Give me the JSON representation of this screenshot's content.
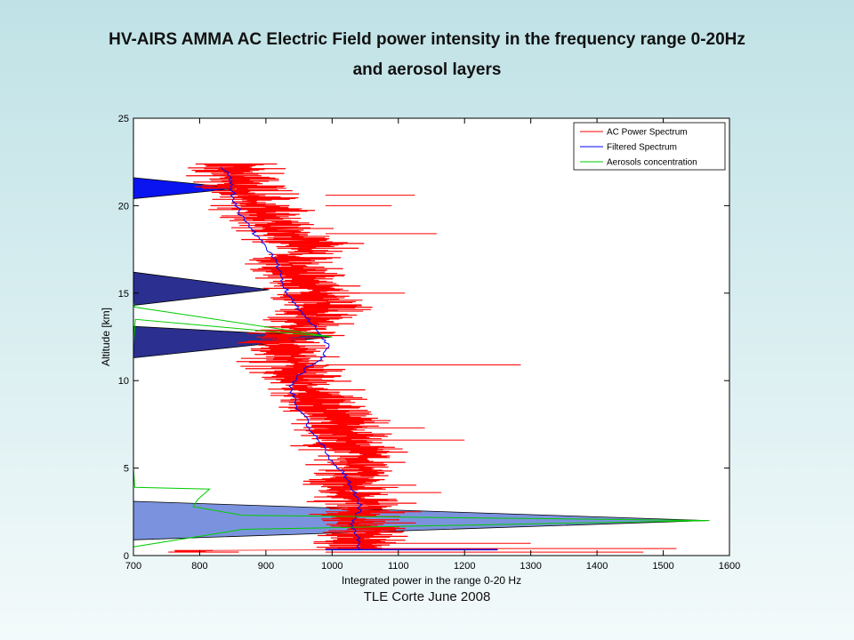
{
  "page": {
    "title_line_1": "HV-AIRS AMMA AC Electric Field power intensity in the frequency range 0-20Hz",
    "title_line_2": "and aerosol layers",
    "footer": "TLE Corte June 2008"
  },
  "chart_data": {
    "type": "line",
    "title": "",
    "xlabel": "Integrated power in the range 0-20 Hz",
    "ylabel": "Altitude [km]",
    "xlim": [
      700,
      1600
    ],
    "ylim": [
      0,
      25
    ],
    "xticks": [
      "700",
      "800",
      "900",
      "1000",
      "1100",
      "1200",
      "1300",
      "1400",
      "1500",
      "1600"
    ],
    "yticks": [
      "0",
      "5",
      "10",
      "15",
      "20",
      "25"
    ],
    "grid": false,
    "legend_position": "top-right",
    "colors": {
      "ac_power": "#ff0000",
      "filtered": "#0000ff",
      "aerosols": "#00cc00",
      "layer_dark": "#2b2f8f",
      "layer_bright": "#0a14f0",
      "layer_light": "#7b93de"
    },
    "series": [
      {
        "name": "AC Power Spectrum",
        "x": [
          1050,
          1030,
          1060,
          1045,
          1035,
          1055,
          1040,
          1020,
          1035,
          1050,
          1030,
          1045,
          1020,
          1035,
          1010,
          1020,
          990,
          985,
          970,
          965,
          950,
          945,
          930,
          925,
          935,
          945,
          965,
          980,
          990,
          985,
          970,
          960,
          945,
          935,
          955,
          965,
          940,
          920,
          905,
          900,
          885,
          870,
          860,
          850,
          845,
          840,
          830,
          815,
          810,
          805
        ],
        "y": [
          0.3,
          0.8,
          1.3,
          1.8,
          2.3,
          2.8,
          3.3,
          3.8,
          4.3,
          4.8,
          5.3,
          5.8,
          6.3,
          6.8,
          7.3,
          7.8,
          8.3,
          8.8,
          9.3,
          9.8,
          10.3,
          10.8,
          11.3,
          11.8,
          12.3,
          12.8,
          13.3,
          13.8,
          14.3,
          14.8,
          15.3,
          15.8,
          16.3,
          16.8,
          17.3,
          17.8,
          18.3,
          18.8,
          19.3,
          19.8,
          20.3,
          20.8,
          21.3,
          21.8,
          22.2,
          22.4,
          22.3,
          22.1,
          21.8,
          21.5
        ],
        "spread": 55
      },
      {
        "name": "Filtered Spectrum",
        "x": [
          1040,
          1042,
          1035,
          1030,
          1038,
          1042,
          1038,
          1030,
          1025,
          1015,
          1000,
          995,
          985,
          975,
          965,
          960,
          950,
          945,
          940,
          938,
          950,
          965,
          985,
          995,
          990,
          980,
          970,
          958,
          945,
          935,
          930,
          925,
          920,
          915,
          905,
          895,
          885,
          875,
          865,
          858,
          852,
          850,
          848,
          845,
          840,
          832,
          825
        ],
        "y": [
          0.3,
          0.8,
          1.3,
          1.8,
          2.3,
          2.8,
          3.3,
          3.8,
          4.3,
          4.8,
          5.3,
          5.8,
          6.3,
          6.8,
          7.3,
          7.8,
          8.3,
          8.8,
          9.3,
          9.8,
          10.3,
          10.8,
          11.3,
          11.8,
          12.3,
          12.8,
          13.3,
          13.8,
          14.3,
          14.8,
          15.3,
          15.8,
          16.3,
          16.8,
          17.3,
          17.8,
          18.3,
          18.8,
          19.3,
          19.8,
          20.3,
          20.8,
          21.3,
          21.6,
          22.0,
          22.2,
          22.3
        ]
      },
      {
        "name": "Aerosols concentration",
        "x": [
          700,
          700,
          865,
          1570,
          865,
          790,
          797,
          815,
          702,
          700,
          700,
          703,
          1000,
          702,
          700,
          700
        ],
        "y": [
          0,
          0.5,
          1.5,
          2.0,
          2.3,
          2.8,
          3.2,
          3.8,
          3.9,
          5.0,
          12.0,
          13.5,
          12.5,
          14.2,
          14.5,
          25.0
        ]
      }
    ],
    "layers": [
      {
        "base_y": [
          20.4,
          21.6
        ],
        "tip_x": 860,
        "tip_y": 21.0,
        "color": "#0a14f0"
      },
      {
        "base_y": [
          14.3,
          16.2
        ],
        "tip_x": 905,
        "tip_y": 15.2,
        "color": "#2b2f8f"
      },
      {
        "base_y": [
          11.3,
          13.1
        ],
        "tip_x": 1000,
        "tip_y": 12.5,
        "color": "#2b2f8f"
      },
      {
        "base_y": [
          0.9,
          3.1
        ],
        "tip_x": 1568,
        "tip_y": 2.0,
        "color": "#7b93de"
      }
    ],
    "spikes": [
      {
        "y": 0.35,
        "x": 1250,
        "color": "#0a14f0"
      },
      {
        "y": 0.4,
        "x": 1520
      },
      {
        "y": 0.2,
        "x": 1470
      },
      {
        "y": 0.7,
        "x": 1300
      },
      {
        "y": 10.9,
        "x": 1285
      },
      {
        "y": 18.4,
        "x": 1158
      },
      {
        "y": 20.0,
        "x": 1090
      },
      {
        "y": 20.6,
        "x": 1125
      },
      {
        "y": 15.0,
        "x": 1110
      },
      {
        "y": 6.6,
        "x": 1200
      },
      {
        "y": 7.3,
        "x": 1140
      },
      {
        "y": 3.6,
        "x": 1165
      },
      {
        "y": 2.5,
        "x": 1135
      }
    ]
  }
}
